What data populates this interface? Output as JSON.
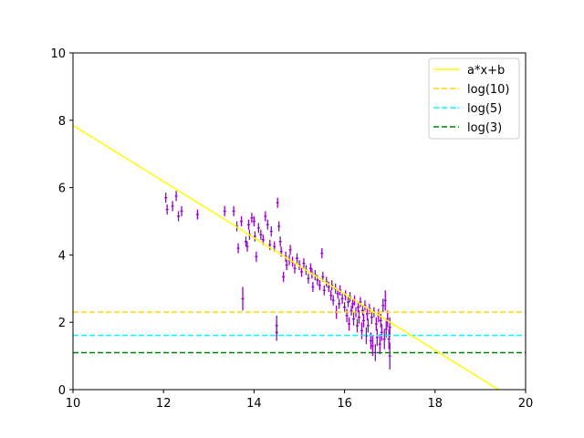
{
  "chart_data": {
    "type": "scatter",
    "title": "",
    "xlabel": "",
    "ylabel": "",
    "xlim": [
      10,
      20
    ],
    "ylim": [
      0,
      10
    ],
    "xticks": [
      10,
      12,
      14,
      16,
      18,
      20
    ],
    "yticks": [
      0,
      2,
      4,
      6,
      8,
      10
    ],
    "grid": false,
    "legend_position": "top-right",
    "fit_line": {
      "name": "a*x+b",
      "slope": -0.835,
      "intercept": 16.2,
      "color": "#ffff00"
    },
    "hlines": [
      {
        "name": "log(10)",
        "y": 2.302585,
        "color": "#ffd700",
        "style": "dashed"
      },
      {
        "name": "log(5)",
        "y": 1.609438,
        "color": "#00ffff",
        "style": "dashed"
      },
      {
        "name": "log(3)",
        "y": 1.098612,
        "color": "#008000",
        "style": "dashed"
      }
    ],
    "errorbar_series": {
      "color": "#9400d3",
      "points": [
        [
          12.05,
          5.7,
          0.03,
          0.15
        ],
        [
          12.08,
          5.35,
          0.03,
          0.15
        ],
        [
          12.2,
          5.45,
          0.03,
          0.15
        ],
        [
          12.28,
          5.75,
          0.03,
          0.15
        ],
        [
          12.33,
          5.15,
          0.03,
          0.15
        ],
        [
          12.4,
          5.3,
          0.03,
          0.15
        ],
        [
          12.75,
          5.2,
          0.03,
          0.15
        ],
        [
          13.35,
          5.3,
          0.03,
          0.15
        ],
        [
          13.55,
          5.3,
          0.03,
          0.15
        ],
        [
          13.62,
          4.85,
          0.03,
          0.15
        ],
        [
          13.65,
          4.2,
          0.03,
          0.15
        ],
        [
          13.72,
          5.0,
          0.03,
          0.15
        ],
        [
          13.75,
          2.7,
          0.03,
          0.35
        ],
        [
          13.82,
          4.4,
          0.03,
          0.15
        ],
        [
          13.85,
          4.25,
          0.03,
          0.15
        ],
        [
          13.88,
          4.9,
          0.03,
          0.15
        ],
        [
          13.9,
          4.6,
          0.03,
          0.15
        ],
        [
          13.95,
          5.1,
          0.03,
          0.15
        ],
        [
          14.0,
          5.0,
          0.03,
          0.15
        ],
        [
          14.02,
          4.55,
          0.03,
          0.15
        ],
        [
          14.05,
          3.95,
          0.03,
          0.15
        ],
        [
          14.1,
          4.8,
          0.03,
          0.15
        ],
        [
          14.15,
          4.6,
          0.03,
          0.15
        ],
        [
          14.2,
          4.45,
          0.03,
          0.15
        ],
        [
          14.25,
          5.15,
          0.03,
          0.15
        ],
        [
          14.3,
          4.9,
          0.03,
          0.15
        ],
        [
          14.35,
          4.3,
          0.03,
          0.15
        ],
        [
          14.38,
          4.7,
          0.03,
          0.15
        ],
        [
          14.45,
          4.25,
          0.03,
          0.15
        ],
        [
          14.5,
          1.9,
          0.03,
          0.3
        ],
        [
          14.5,
          1.7,
          0.03,
          0.25
        ],
        [
          14.52,
          5.55,
          0.03,
          0.15
        ],
        [
          14.55,
          4.85,
          0.03,
          0.15
        ],
        [
          14.58,
          4.4,
          0.03,
          0.15
        ],
        [
          14.6,
          4.1,
          0.03,
          0.15
        ],
        [
          14.65,
          3.35,
          0.03,
          0.15
        ],
        [
          14.7,
          3.95,
          0.03,
          0.15
        ],
        [
          14.72,
          3.7,
          0.03,
          0.15
        ],
        [
          14.78,
          3.85,
          0.03,
          0.15
        ],
        [
          14.8,
          4.15,
          0.03,
          0.15
        ],
        [
          14.85,
          3.8,
          0.03,
          0.15
        ],
        [
          14.9,
          3.6,
          0.03,
          0.15
        ],
        [
          14.95,
          3.9,
          0.03,
          0.15
        ],
        [
          15.0,
          3.7,
          0.03,
          0.15
        ],
        [
          15.05,
          3.5,
          0.03,
          0.15
        ],
        [
          15.1,
          3.75,
          0.03,
          0.15
        ],
        [
          15.15,
          3.55,
          0.03,
          0.15
        ],
        [
          15.2,
          3.3,
          0.03,
          0.15
        ],
        [
          15.25,
          3.6,
          0.03,
          0.15
        ],
        [
          15.28,
          3.45,
          0.03,
          0.15
        ],
        [
          15.3,
          3.05,
          0.03,
          0.15
        ],
        [
          15.35,
          3.4,
          0.03,
          0.15
        ],
        [
          15.4,
          3.25,
          0.03,
          0.15
        ],
        [
          15.45,
          3.1,
          0.03,
          0.15
        ],
        [
          15.5,
          4.05,
          0.03,
          0.15
        ],
        [
          15.52,
          3.35,
          0.03,
          0.15
        ],
        [
          15.55,
          2.95,
          0.03,
          0.15
        ],
        [
          15.6,
          3.2,
          0.03,
          0.15
        ],
        [
          15.65,
          3.05,
          0.03,
          0.15
        ],
        [
          15.7,
          2.8,
          0.03,
          0.15
        ],
        [
          15.72,
          3.1,
          0.03,
          0.15
        ],
        [
          15.75,
          2.65,
          0.03,
          0.15
        ],
        [
          15.8,
          3.0,
          0.03,
          0.15
        ],
        [
          15.82,
          2.3,
          0.03,
          0.2
        ],
        [
          15.85,
          2.85,
          0.03,
          0.15
        ],
        [
          15.88,
          2.55,
          0.03,
          0.15
        ],
        [
          15.9,
          2.95,
          0.03,
          0.15
        ],
        [
          15.95,
          2.7,
          0.03,
          0.15
        ],
        [
          16.0,
          2.45,
          0.03,
          0.15
        ],
        [
          16.02,
          2.8,
          0.03,
          0.15
        ],
        [
          16.05,
          2.2,
          0.03,
          0.2
        ],
        [
          16.08,
          2.6,
          0.03,
          0.15
        ],
        [
          16.1,
          1.95,
          0.03,
          0.2
        ],
        [
          16.12,
          2.75,
          0.03,
          0.15
        ],
        [
          16.15,
          2.35,
          0.03,
          0.15
        ],
        [
          16.18,
          2.55,
          0.03,
          0.15
        ],
        [
          16.2,
          2.1,
          0.03,
          0.2
        ],
        [
          16.22,
          2.65,
          0.03,
          0.15
        ],
        [
          16.25,
          2.3,
          0.03,
          0.15
        ],
        [
          16.28,
          1.9,
          0.03,
          0.2
        ],
        [
          16.3,
          2.45,
          0.03,
          0.15
        ],
        [
          16.32,
          2.15,
          0.03,
          0.2
        ],
        [
          16.35,
          2.6,
          0.03,
          0.15
        ],
        [
          16.38,
          1.75,
          0.03,
          0.25
        ],
        [
          16.4,
          2.35,
          0.03,
          0.15
        ],
        [
          16.42,
          2.05,
          0.03,
          0.2
        ],
        [
          16.45,
          2.5,
          0.03,
          0.15
        ],
        [
          16.48,
          1.6,
          0.03,
          0.25
        ],
        [
          16.5,
          2.25,
          0.03,
          0.2
        ],
        [
          16.52,
          1.9,
          0.03,
          0.2
        ],
        [
          16.55,
          2.4,
          0.03,
          0.15
        ],
        [
          16.58,
          1.45,
          0.03,
          0.25
        ],
        [
          16.6,
          2.15,
          0.03,
          0.2
        ],
        [
          16.62,
          1.3,
          0.03,
          0.3
        ],
        [
          16.65,
          2.3,
          0.03,
          0.15
        ],
        [
          16.68,
          1.1,
          0.03,
          0.25
        ],
        [
          16.7,
          1.95,
          0.03,
          0.2
        ],
        [
          16.72,
          1.55,
          0.03,
          0.25
        ],
        [
          16.75,
          2.2,
          0.03,
          0.2
        ],
        [
          16.78,
          1.35,
          0.03,
          0.3
        ],
        [
          16.8,
          2.05,
          0.03,
          0.2
        ],
        [
          16.82,
          1.7,
          0.03,
          0.25
        ],
        [
          16.85,
          2.5,
          0.03,
          0.2
        ],
        [
          16.88,
          1.5,
          0.03,
          0.3
        ],
        [
          16.9,
          2.65,
          0.03,
          0.3
        ],
        [
          16.92,
          1.8,
          0.03,
          0.25
        ],
        [
          16.95,
          2.1,
          0.03,
          0.25
        ],
        [
          16.98,
          1.5,
          0.03,
          0.3
        ],
        [
          17.0,
          1.0,
          0.03,
          0.4
        ],
        [
          17.0,
          1.85,
          0.03,
          0.3
        ]
      ]
    }
  }
}
